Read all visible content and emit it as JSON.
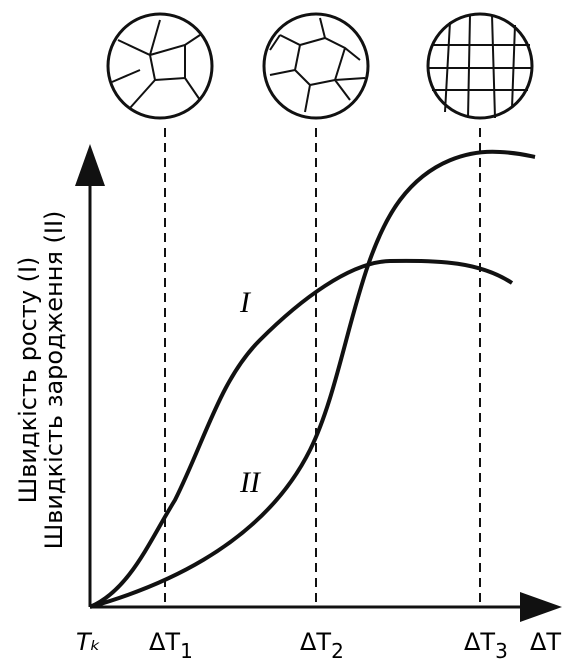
{
  "axes": {
    "y_label_1": "Швидкість росту (I)",
    "y_label_2": "Швидкість зародження (II)",
    "origin_label": "Tₖ",
    "x_end_label": "ΔT"
  },
  "curves": {
    "growth_label": "I",
    "nucleation_label": "II"
  },
  "x_marks": [
    {
      "main": "ΔT",
      "sub": "1"
    },
    {
      "main": "ΔT",
      "sub": "2"
    },
    {
      "main": "ΔT",
      "sub": "3"
    }
  ]
}
